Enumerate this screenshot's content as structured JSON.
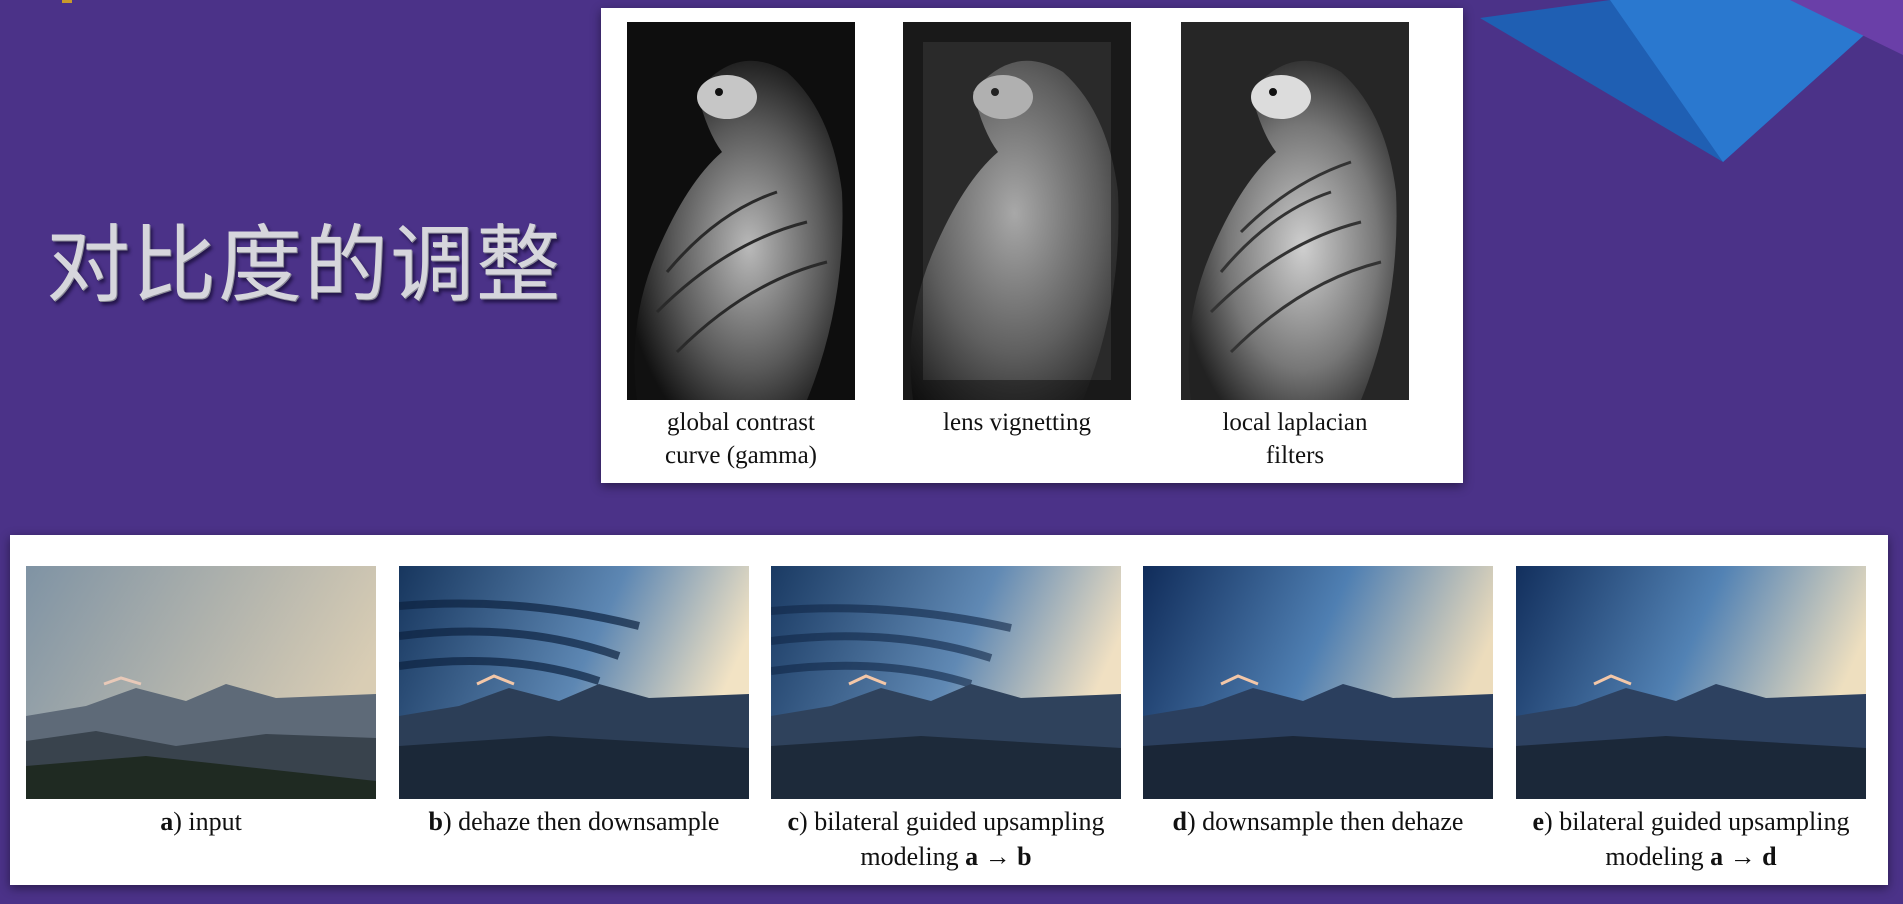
{
  "slide": {
    "title": "对比度的调整"
  },
  "contrast_figure": {
    "items": [
      {
        "line1": "global contrast",
        "line2": "curve (gamma)"
      },
      {
        "line1": "lens vignetting",
        "line2": ""
      },
      {
        "line1": "local laplacian",
        "line2": "filters"
      }
    ]
  },
  "upsampling_figure": {
    "items": [
      {
        "letter": "a",
        "text": ") input",
        "line2_prefix": "",
        "from": "",
        "arrow": "",
        "to": ""
      },
      {
        "letter": "b",
        "text": ") dehaze then downsample",
        "line2_prefix": "",
        "from": "",
        "arrow": "",
        "to": ""
      },
      {
        "letter": "c",
        "text": ") bilateral guided upsampling",
        "line2_prefix": "modeling ",
        "from": "a",
        "arrow": " → ",
        "to": "b"
      },
      {
        "letter": "d",
        "text": ") downsample then dehaze",
        "line2_prefix": "",
        "from": "",
        "arrow": "",
        "to": ""
      },
      {
        "letter": "e",
        "text": ") bilateral guided upsampling",
        "line2_prefix": "modeling ",
        "from": "a",
        "arrow": " → ",
        "to": "d"
      }
    ]
  },
  "colors": {
    "background": "#4b3288",
    "accent_blue": "#1f5fb3"
  }
}
